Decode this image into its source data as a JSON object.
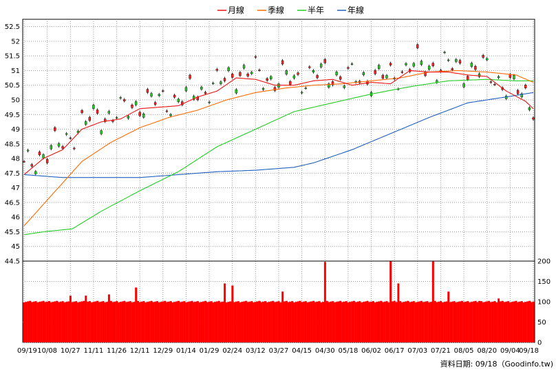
{
  "chart_data": {
    "type": "candlestick",
    "legend": [
      {
        "label": "月線",
        "color": "#ee1111"
      },
      {
        "label": "季線",
        "color": "#ff6a00"
      },
      {
        "label": "半年",
        "color": "#22cc22"
      },
      {
        "label": "年線",
        "color": "#1f5fbf"
      }
    ],
    "price_axis": {
      "ylim": [
        44.5,
        52.75
      ],
      "ticks": [
        "52.5",
        "52",
        "51.5",
        "51",
        "50.5",
        "50",
        "49.5",
        "49",
        "48.5",
        "48",
        "47.5",
        "47",
        "46.5",
        "46",
        "45.5",
        "45",
        "44.5"
      ]
    },
    "volume_axis": {
      "ylim": [
        0,
        200
      ],
      "ticks": [
        "200",
        "150",
        "100",
        "50",
        "0"
      ]
    },
    "x_tick_labels": [
      "09/19",
      "10/08",
      "10/27",
      "11/11",
      "11/26",
      "12/11",
      "12/29",
      "01/14",
      "01/29",
      "02/24",
      "03/12",
      "03/27",
      "04/15",
      "04/30",
      "05/18",
      "06/02",
      "06/17",
      "07/03",
      "07/21",
      "08/05",
      "08/20",
      "09/04",
      "09/18"
    ],
    "credit": "資料日期: 09/18（Goodinfo.tw)",
    "x_index": [
      0,
      12,
      24,
      36,
      48,
      60,
      72,
      84,
      96,
      108,
      120,
      132,
      144,
      156,
      168,
      180,
      192,
      204,
      216,
      228,
      240,
      252,
      264
    ],
    "ma_month": [
      [
        0,
        47.45
      ],
      [
        10,
        48.0
      ],
      [
        20,
        48.3
      ],
      [
        30,
        49.0
      ],
      [
        40,
        49.25
      ],
      [
        50,
        49.35
      ],
      [
        60,
        49.7
      ],
      [
        70,
        49.75
      ],
      [
        80,
        49.8
      ],
      [
        90,
        50.1
      ],
      [
        100,
        50.3
      ],
      [
        110,
        50.75
      ],
      [
        120,
        50.7
      ],
      [
        130,
        50.5
      ],
      [
        140,
        50.5
      ],
      [
        150,
        50.65
      ],
      [
        160,
        50.7
      ],
      [
        170,
        50.5
      ],
      [
        180,
        50.6
      ],
      [
        190,
        50.55
      ],
      [
        200,
        51.0
      ],
      [
        210,
        50.95
      ],
      [
        220,
        50.95
      ],
      [
        230,
        50.85
      ],
      [
        240,
        50.8
      ],
      [
        250,
        50.3
      ],
      [
        260,
        49.95
      ],
      [
        264,
        49.7
      ]
    ],
    "ma_season": [
      [
        0,
        45.7
      ],
      [
        15,
        46.8
      ],
      [
        30,
        47.9
      ],
      [
        45,
        48.55
      ],
      [
        60,
        49.05
      ],
      [
        75,
        49.4
      ],
      [
        90,
        49.65
      ],
      [
        105,
        50.0
      ],
      [
        120,
        50.25
      ],
      [
        135,
        50.4
      ],
      [
        150,
        50.5
      ],
      [
        165,
        50.55
      ],
      [
        180,
        50.65
      ],
      [
        195,
        50.75
      ],
      [
        210,
        50.95
      ],
      [
        225,
        51.0
      ],
      [
        240,
        50.95
      ],
      [
        255,
        50.85
      ],
      [
        264,
        50.6
      ]
    ],
    "ma_halfyear": [
      [
        0,
        45.4
      ],
      [
        10,
        45.5
      ],
      [
        25,
        45.6
      ],
      [
        40,
        46.2
      ],
      [
        60,
        46.9
      ],
      [
        80,
        47.55
      ],
      [
        100,
        48.4
      ],
      [
        120,
        49.0
      ],
      [
        140,
        49.6
      ],
      [
        160,
        49.9
      ],
      [
        180,
        50.2
      ],
      [
        200,
        50.45
      ],
      [
        220,
        50.65
      ],
      [
        240,
        50.7
      ],
      [
        255,
        50.65
      ],
      [
        264,
        50.65
      ]
    ],
    "ma_year": [
      [
        0,
        47.45
      ],
      [
        20,
        47.35
      ],
      [
        40,
        47.35
      ],
      [
        60,
        47.35
      ],
      [
        80,
        47.45
      ],
      [
        100,
        47.55
      ],
      [
        120,
        47.6
      ],
      [
        140,
        47.7
      ],
      [
        150,
        47.85
      ],
      [
        170,
        48.3
      ],
      [
        190,
        48.85
      ],
      [
        210,
        49.4
      ],
      [
        230,
        49.9
      ],
      [
        250,
        50.1
      ],
      [
        264,
        50.25
      ]
    ],
    "volume_baseline": 100,
    "volume_spikes": [
      [
        24,
        115
      ],
      [
        32,
        115
      ],
      [
        44,
        118
      ],
      [
        58,
        135
      ],
      [
        104,
        145
      ],
      [
        108,
        140
      ],
      [
        134,
        125
      ],
      [
        156,
        198
      ],
      [
        156,
        198
      ],
      [
        190,
        200
      ],
      [
        194,
        145
      ],
      [
        212,
        199
      ],
      [
        220,
        125
      ],
      [
        236,
        102
      ],
      [
        246,
        108
      ]
    ]
  }
}
